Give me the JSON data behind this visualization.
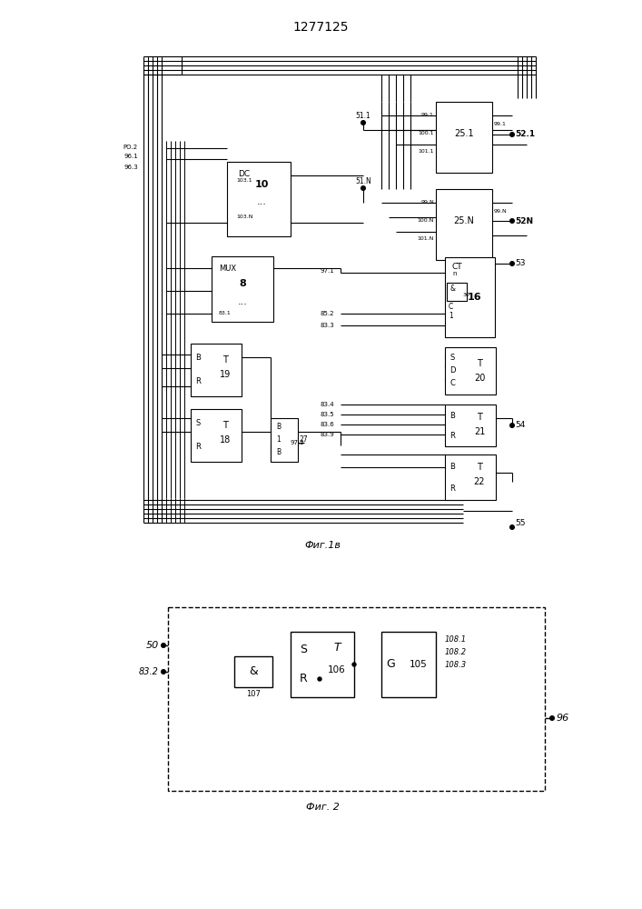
{
  "title": "1277125",
  "fig1_caption": "Фиг.1в",
  "fig2_caption": "Фиг. 2",
  "bg_color": "#ffffff"
}
